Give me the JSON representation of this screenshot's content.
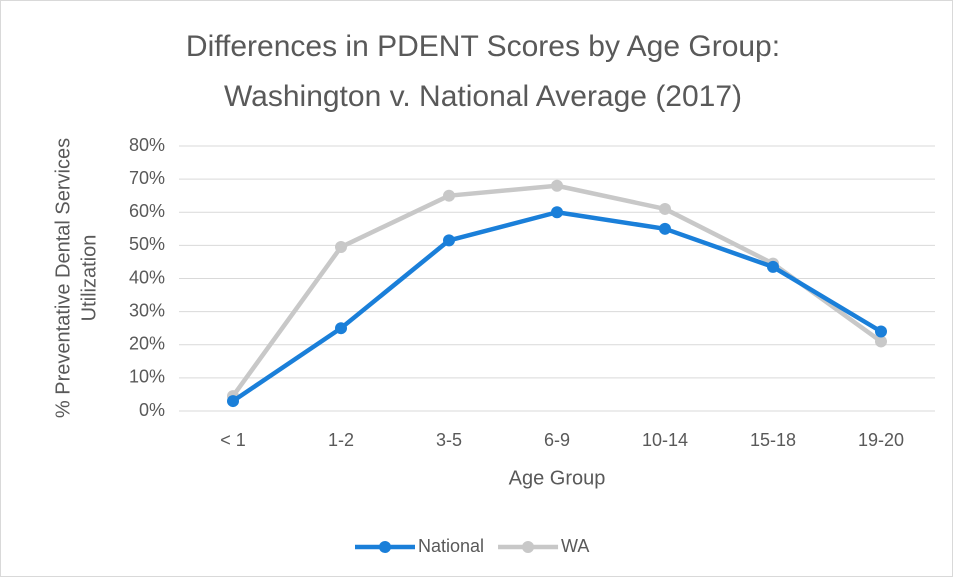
{
  "chart_data": {
    "type": "line",
    "title": [
      "Differences in PDENT Scores by Age Group:",
      "Washington v. National Average (2017)"
    ],
    "xlabel": "Age Group",
    "ylabel": [
      "% Preventative Dental Services",
      "Utilization"
    ],
    "categories": [
      "< 1",
      "1-2",
      "3-5",
      "6-9",
      "10-14",
      "15-18",
      "19-20"
    ],
    "series": [
      {
        "name": "National",
        "color": "#1a7fd9",
        "values": [
          3,
          25,
          51.5,
          60,
          55,
          43.5,
          24
        ]
      },
      {
        "name": "WA",
        "color": "#c8c8c8",
        "values": [
          4.5,
          49.5,
          65,
          68,
          61,
          44.5,
          21
        ]
      }
    ],
    "ylim": [
      0,
      80
    ],
    "yticks": [
      {
        "value": 0,
        "label": "0%"
      },
      {
        "value": 10,
        "label": "10%"
      },
      {
        "value": 20,
        "label": "20%"
      },
      {
        "value": 30,
        "label": "30%"
      },
      {
        "value": 40,
        "label": "40%"
      },
      {
        "value": 50,
        "label": "50%"
      },
      {
        "value": 60,
        "label": "60%"
      },
      {
        "value": 70,
        "label": "70%"
      },
      {
        "value": 80,
        "label": "80%"
      }
    ],
    "grid": true,
    "legend": "bottom"
  }
}
